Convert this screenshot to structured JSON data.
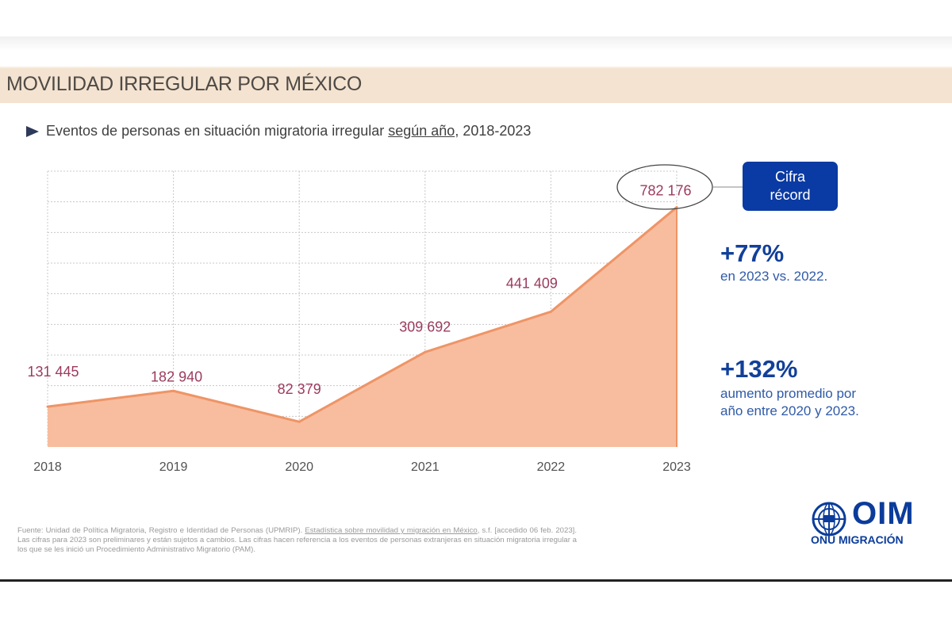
{
  "header": {
    "title": "MOVILIDAD IRREGULAR POR MÉXICO"
  },
  "subtitle": {
    "bullet_icon": "triangle-right-icon",
    "prefix": "Eventos de personas en situación migratoria irregular ",
    "underlined": "según año",
    "suffix": ", 2018-2023"
  },
  "chart_data": {
    "type": "area",
    "title": "Eventos de personas en situación migratoria irregular según año, 2018-2023",
    "xlabel": "",
    "ylabel": "",
    "categories": [
      "2018",
      "2019",
      "2020",
      "2021",
      "2022",
      "2023"
    ],
    "values": [
      131445,
      182940,
      82379,
      309692,
      441409,
      782176
    ],
    "data_labels": [
      "131 445",
      "182 940",
      "82 379",
      "309 692",
      "441 409",
      "782 176"
    ],
    "ylim": [
      0,
      900000
    ],
    "grid": true,
    "grid_step": 100000,
    "legend": "none",
    "colors": {
      "fill": "#f7bd9e",
      "line": "#ef9466",
      "label": "#9c3a5e",
      "grid": "#c8c8c8"
    },
    "annotations": [
      {
        "type": "ellipse-highlight",
        "target": "2023",
        "text": "782 176"
      },
      {
        "type": "badge",
        "text_line1": "Cifra",
        "text_line2": "récord"
      }
    ]
  },
  "badge": {
    "line1": "Cifra",
    "line2": "récord",
    "color": "#0a3aa3"
  },
  "stats": [
    {
      "value": "+77%",
      "lines": [
        "en 2023 vs. 2022."
      ]
    },
    {
      "value": "+132%",
      "lines": [
        "aumento promedio por",
        "año entre 2020 y 2023."
      ]
    }
  ],
  "footnote": {
    "part1": "Fuente: Unidad de Política Migratoria, Registro e Identidad de Personas (UPMRIP). ",
    "link": "Estadística sobre movilidad y migración en México",
    "part2": ", s.f. [accedido 06 feb. 2023]. Las cifras para 2023 son preliminares y están sujetos a cambios. Las cifras hacen referencia a los eventos de personas extranjeras en situación migratoria irregular a los que se les inició un Procedimiento Administrativo Migratorio (PAM)."
  },
  "logo": {
    "icon": "un-globe-emblem-icon",
    "name": "OIM",
    "tagline": "ONU MIGRACIÓN"
  }
}
